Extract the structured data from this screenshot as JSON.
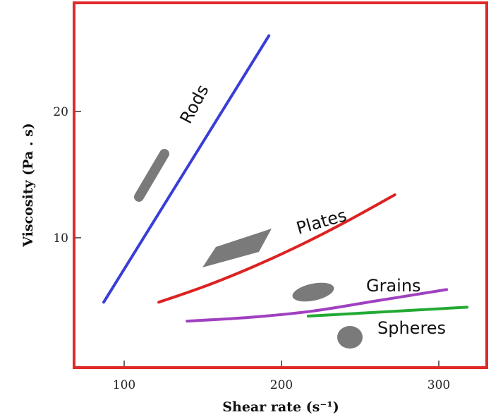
{
  "chart_data": {
    "type": "line",
    "xlabel": "Shear rate (s⁻¹)",
    "ylabel": "Viscosity (Pa . s)",
    "xlim": [
      70,
      320
    ],
    "ylim": [
      0,
      26.5
    ],
    "xticks": [
      100,
      200,
      300
    ],
    "yticks": [
      10,
      20
    ],
    "grid": false,
    "series": [
      {
        "name": "Rods",
        "color": "#3a3ed6",
        "points": [
          [
            87,
            4.9
          ],
          [
            192,
            26.0
          ]
        ]
      },
      {
        "name": "Plates",
        "color": "#dd2222",
        "points": [
          [
            122,
            4.9
          ],
          [
            150,
            6.1
          ],
          [
            180,
            7.6
          ],
          [
            210,
            9.3
          ],
          [
            240,
            11.2
          ],
          [
            272,
            13.4
          ]
        ]
      },
      {
        "name": "Grains",
        "color": "#a040c0",
        "points": [
          [
            140,
            3.4
          ],
          [
            180,
            3.7
          ],
          [
            220,
            4.2
          ],
          [
            260,
            5.0
          ],
          [
            305,
            5.9
          ]
        ]
      },
      {
        "name": "Spheres",
        "color": "#22aa33",
        "points": [
          [
            217,
            3.8
          ],
          [
            318,
            4.5
          ]
        ]
      }
    ]
  },
  "colors": {
    "frame": "#e02a2a",
    "shape_fill": "#7a7a7a"
  }
}
